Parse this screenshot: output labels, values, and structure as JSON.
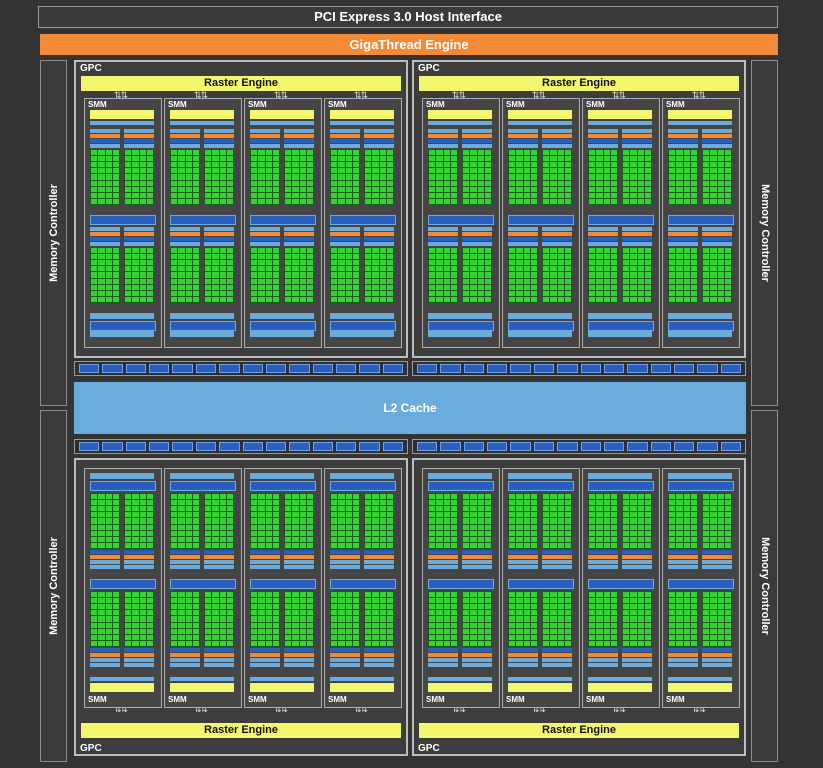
{
  "host_interface": "PCI Express 3.0 Host Interface",
  "thread_engine": "GigaThread Engine",
  "memory_controller_label": "Memory Controller",
  "l2_cache": "L2 Cache",
  "gpc_label": "GPC",
  "raster_engine_label": "Raster Engine",
  "smm_label": "SMM",
  "arrow_glyph": "⇅",
  "colors": {
    "background": "#333333",
    "giga_thread": "#f28a37",
    "raster_engine": "#f4f66b",
    "l2_cache": "#6aacdc",
    "cuda_core": "#35d335",
    "load_store": "#2a5fc0",
    "texture": "#6aacdc",
    "sfu": "#f28a37"
  },
  "counts": {
    "gpcs": 4,
    "smm_per_gpc": 4
  }
}
